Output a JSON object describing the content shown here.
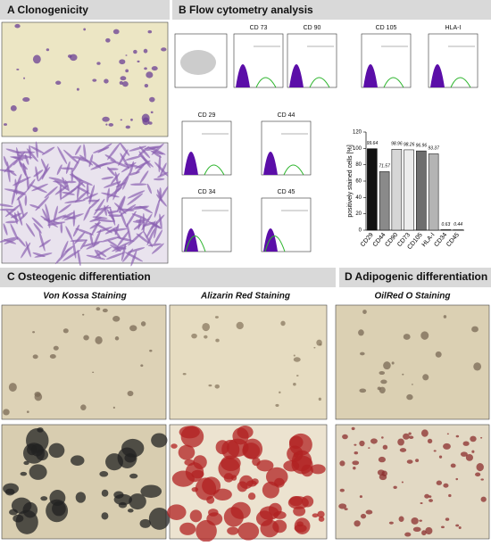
{
  "panels": {
    "a": {
      "title": "A Clonogenicity"
    },
    "b": {
      "title": "B Flow cytometry analysis",
      "histograms": [
        "CD 73",
        "CD 90",
        "CD 105",
        "HLA-I",
        "CD 29",
        "CD 44",
        "CD 34",
        "CD 45"
      ]
    },
    "c": {
      "title": "C  Osteogenic differentiation",
      "stainings": [
        "Von Kossa Staining",
        "Alizarin Red Staining"
      ]
    },
    "d": {
      "title": "D Adipogenic differentiation",
      "stainings": [
        "OilRed O Staining"
      ]
    }
  },
  "chart_data": {
    "type": "bar",
    "y_label": "positively stained cells [%]",
    "categories": [
      "CD29",
      "CD44",
      "CD90",
      "CD73",
      "CD105",
      "HLA-I",
      "CD34",
      "CD45"
    ],
    "values": [
      99.64,
      71.57,
      98.96,
      98.26,
      96.96,
      93.37,
      0.63,
      0.44
    ],
    "colors": [
      "#111111",
      "#8a8a8a",
      "#d6d6d6",
      "#ececec",
      "#6e6e6e",
      "#b4b4b4",
      "#999999",
      "#999999"
    ],
    "ylim": [
      0,
      120
    ],
    "yticks": [
      0,
      20,
      40,
      60,
      80,
      100,
      120
    ]
  }
}
